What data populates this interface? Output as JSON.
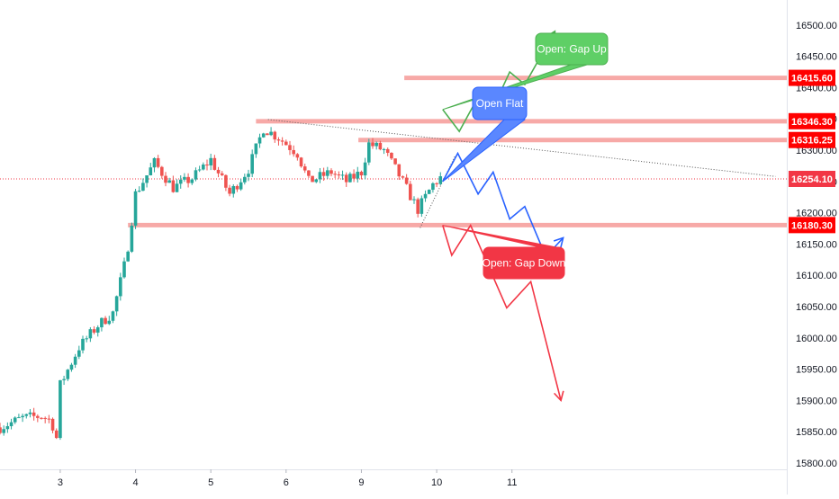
{
  "chart_data": {
    "type": "candlestick",
    "title": "",
    "xlabel": "",
    "ylabel": "",
    "ylim": [
      15790,
      16540
    ],
    "xlim": [
      2.2,
      12.65
    ],
    "grid": false,
    "x_ticks": [
      {
        "x": 3,
        "label": "3"
      },
      {
        "x": 4,
        "label": "4"
      },
      {
        "x": 5,
        "label": "5"
      },
      {
        "x": 6,
        "label": "6"
      },
      {
        "x": 9,
        "label": "9",
        "pos": 7
      },
      {
        "x": 10,
        "label": "10",
        "pos": 8
      },
      {
        "x": 11,
        "label": "11",
        "pos": 9
      }
    ],
    "y_ticks": [
      15800,
      15850,
      15900,
      15950,
      16000,
      16050,
      16100,
      16150,
      16200,
      16250,
      16300,
      16350,
      16400,
      16450,
      16500
    ],
    "y_tick_labels": [
      "15800.00",
      "15850.00",
      "15900.00",
      "15950.00",
      "16000.00",
      "16050.00",
      "16100.00",
      "16150.00",
      "16200.00",
      "16250.00",
      "16300.00",
      "16350.00",
      "16400.00",
      "16450.00",
      "16500.00"
    ],
    "last_price": {
      "value": 16254.1,
      "label": "16254.10",
      "color": "#f23645"
    },
    "levels": [
      {
        "value": 16415.6,
        "label": "16415.60",
        "x_from": 7.57
      },
      {
        "value": 16346.3,
        "label": "16346.30",
        "x_from": 5.6
      },
      {
        "value": 16316.25,
        "label": "16316.25",
        "x_from": 6.96
      },
      {
        "value": 16180.3,
        "label": "16180.30",
        "x_from": 3.9
      }
    ],
    "level_color": "#f7a9a7",
    "level_label_color": "#ff0000",
    "trendline_upper": [
      [
        5.76,
        16349
      ],
      [
        12.5,
        16258
      ]
    ],
    "trendline_lower": [
      [
        7.78,
        16176
      ],
      [
        8.25,
        16292
      ]
    ],
    "price_path_anchors": [
      [
        2.2,
        15857
      ],
      [
        2.5,
        15872
      ],
      [
        2.75,
        15875
      ],
      [
        2.88,
        15868
      ],
      [
        2.95,
        15840
      ],
      [
        3.0,
        15925
      ],
      [
        3.25,
        15985
      ],
      [
        3.5,
        16020
      ],
      [
        3.7,
        16040
      ],
      [
        3.88,
        16130
      ],
      [
        4.0,
        16230
      ],
      [
        4.25,
        16280
      ],
      [
        4.5,
        16240
      ],
      [
        4.75,
        16255
      ],
      [
        5.0,
        16285
      ],
      [
        5.25,
        16230
      ],
      [
        5.5,
        16270
      ],
      [
        5.7,
        16335
      ],
      [
        5.9,
        16320
      ],
      [
        6.15,
        16295
      ],
      [
        6.3,
        16250
      ],
      [
        6.6,
        16265
      ],
      [
        6.8,
        16250
      ],
      [
        7.0,
        16265
      ],
      [
        7.1,
        16310
      ],
      [
        7.3,
        16300
      ],
      [
        7.5,
        16260
      ],
      [
        7.75,
        16205
      ],
      [
        7.95,
        16245
      ],
      [
        8.05,
        16256
      ]
    ],
    "scenarios": [
      {
        "label": "Open: Gap Up",
        "color": "#4caf50",
        "fill": "#5fcf66",
        "points": [
          [
            8.08,
            16365
          ],
          [
            8.3,
            16330
          ],
          [
            8.55,
            16385
          ],
          [
            8.72,
            16360
          ],
          [
            8.97,
            16425
          ],
          [
            9.17,
            16405
          ],
          [
            9.57,
            16490
          ]
        ]
      },
      {
        "label": "Open Flat",
        "color": "#2962ff",
        "fill": "#5a87ff",
        "points": [
          [
            8.08,
            16250
          ],
          [
            8.28,
            16295
          ],
          [
            8.55,
            16230
          ],
          [
            8.75,
            16265
          ],
          [
            8.97,
            16190
          ],
          [
            9.17,
            16210
          ],
          [
            9.45,
            16130
          ],
          [
            9.68,
            16160
          ]
        ]
      },
      {
        "label": "Open: Gap Down",
        "color": "#f23645",
        "fill": "#f23645",
        "points": [
          [
            8.08,
            16180
          ],
          [
            8.2,
            16132
          ],
          [
            8.45,
            16180
          ],
          [
            8.93,
            16048
          ],
          [
            9.25,
            16090
          ],
          [
            9.65,
            15900
          ]
        ]
      }
    ]
  }
}
